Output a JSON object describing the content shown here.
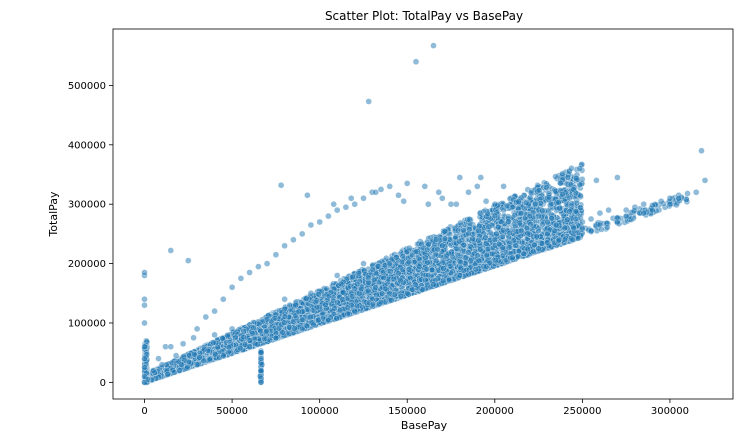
{
  "chart_data": {
    "type": "scatter",
    "title": "Scatter Plot: TotalPay vs BasePay",
    "xlabel": "BasePay",
    "ylabel": "TotalPay",
    "xlim": [
      -18000,
      336000
    ],
    "ylim": [
      -28000,
      595000
    ],
    "xticks": [
      0,
      50000,
      100000,
      150000,
      200000,
      250000,
      300000
    ],
    "xtick_labels": [
      "0",
      "50000",
      "100000",
      "150000",
      "200000",
      "250000",
      "300000"
    ],
    "yticks": [
      0,
      100000,
      200000,
      300000,
      400000,
      500000
    ],
    "ytick_labels": [
      "0",
      "100000",
      "200000",
      "300000",
      "400000",
      "500000"
    ],
    "grid": false,
    "legend": "none",
    "color": "#1f77b4",
    "series": [
      {
        "x": [
          0,
          0,
          0,
          0,
          0,
          0,
          0,
          0,
          0,
          0,
          2000,
          5000,
          8000,
          12000,
          15000,
          18000,
          22000,
          25000,
          28000,
          30000,
          35000,
          40000,
          45000,
          50000,
          55000,
          60000,
          65000,
          66000,
          66500,
          67000,
          66500,
          66500,
          66500,
          70000,
          75000,
          80000,
          85000,
          90000,
          95000,
          100000,
          105000,
          110000,
          115000,
          120000,
          125000,
          128000,
          130000,
          135000,
          140000,
          145000,
          150000,
          155000,
          160000,
          165000,
          168000,
          170000,
          175000,
          180000,
          185000,
          190000,
          195000,
          200000,
          205000,
          210000,
          215000,
          220000,
          225000,
          230000,
          235000,
          240000,
          245000,
          250000,
          255000,
          258000,
          260000,
          265000,
          270000,
          275000,
          280000,
          285000,
          290000,
          295000,
          300000,
          305000,
          310000,
          315000,
          318000,
          320000,
          20000,
          30000,
          45000,
          60000,
          75000,
          90000,
          105000,
          120000,
          135000,
          150000,
          165000,
          180000,
          195000,
          210000,
          225000,
          240000,
          255000,
          270000,
          285000,
          300000,
          15000,
          40000,
          80000,
          110000,
          140000,
          170000,
          200000,
          230000,
          260000,
          290000,
          10000,
          50000,
          95000,
          125000,
          155000,
          185000,
          215000,
          245000,
          275000,
          305000,
          78000,
          93000,
          108000,
          118000,
          132000,
          148000,
          162000,
          178000,
          192000,
          205000
        ],
        "y": [
          0,
          10000,
          25000,
          40000,
          60000,
          100000,
          130000,
          140000,
          180000,
          185000,
          5000,
          20000,
          40000,
          60000,
          222000,
          45000,
          65000,
          205000,
          75000,
          90000,
          110000,
          120000,
          140000,
          160000,
          175000,
          185000,
          195000,
          10000,
          20000,
          30000,
          40000,
          50000,
          0,
          200000,
          215000,
          230000,
          240000,
          250000,
          265000,
          270000,
          280000,
          290000,
          295000,
          300000,
          310000,
          473000,
          320000,
          325000,
          330000,
          315000,
          335000,
          540000,
          330000,
          567000,
          320000,
          310000,
          300000,
          345000,
          320000,
          330000,
          305000,
          300000,
          290000,
          295000,
          285000,
          280000,
          280000,
          270000,
          265000,
          260000,
          262000,
          270000,
          275000,
          340000,
          285000,
          290000,
          345000,
          290000,
          295000,
          300000,
          298000,
          305000,
          310000,
          315000,
          318000,
          320000,
          390000,
          340000,
          20000,
          30000,
          45000,
          60000,
          75000,
          90000,
          105000,
          120000,
          135000,
          150000,
          165000,
          180000,
          195000,
          210000,
          225000,
          240000,
          255000,
          270000,
          285000,
          300000,
          60000,
          80000,
          140000,
          180000,
          200000,
          230000,
          240000,
          250000,
          265000,
          290000,
          30000,
          90000,
          150000,
          200000,
          220000,
          250000,
          255000,
          260000,
          280000,
          310000,
          332000,
          315000,
          300000,
          310000,
          320000,
          305000,
          300000,
          300000,
          345000,
          330000
        ]
      }
    ]
  }
}
